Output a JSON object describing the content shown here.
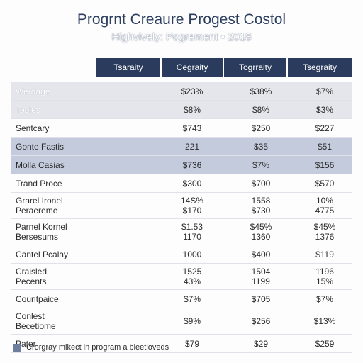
{
  "title": "Progrnt Creaure Progest Costol",
  "subtitle": "Highvively: Pogrement • 2018",
  "columns": [
    "Tsaraity",
    "Cegraity",
    "Togrraity",
    "Tsegraity"
  ],
  "rows": [
    {
      "label": [
        "Werdage"
      ],
      "values": [
        [
          "$23%"
        ],
        [
          "$38%"
        ],
        [
          "$7%"
        ]
      ]
    },
    {
      "label": [
        "Teples"
      ],
      "values": [
        [
          "$8%"
        ],
        [
          "$8%"
        ],
        [
          "$3%"
        ]
      ]
    },
    {
      "label": [
        "Sentcary"
      ],
      "values": [
        [
          "$743"
        ],
        [
          "$250"
        ],
        [
          "$227"
        ]
      ]
    },
    {
      "label": [
        "Gonte Fastis"
      ],
      "values": [
        [
          "221"
        ],
        [
          "$35"
        ],
        [
          "$51"
        ]
      ]
    },
    {
      "label": [
        "Molla Casias"
      ],
      "values": [
        [
          "$736"
        ],
        [
          "$7%"
        ],
        [
          "$156"
        ]
      ]
    },
    {
      "label": [
        "Trand Proce"
      ],
      "values": [
        [
          "$300"
        ],
        [
          "$700"
        ],
        [
          "$570"
        ]
      ]
    },
    {
      "label": [
        "Grarel Ironel",
        "Peraereme"
      ],
      "values": [
        [
          "14S%",
          "$170"
        ],
        [
          "1558",
          "$730"
        ],
        [
          "10%",
          "4775"
        ]
      ]
    },
    {
      "label": [
        "Parnel Kornel",
        "Bersesums"
      ],
      "values": [
        [
          "$1.53",
          "1170"
        ],
        [
          "$45%",
          "1360"
        ],
        [
          "$45%",
          "1376"
        ]
      ]
    },
    {
      "label": [
        "Cantel Pcalay"
      ],
      "values": [
        [
          "1000"
        ],
        [
          "$400"
        ],
        [
          "$119"
        ]
      ]
    },
    {
      "label": [
        "Craisled",
        "Pecents"
      ],
      "values": [
        [
          "1525",
          "43%"
        ],
        [
          "1504",
          "1199"
        ],
        [
          "1196",
          "15%"
        ]
      ]
    },
    {
      "label": [
        "Countpaice"
      ],
      "values": [
        [
          "$7%"
        ],
        [
          "$705"
        ],
        [
          "$7%"
        ]
      ]
    },
    {
      "label": [
        "Conlest",
        "Becetiome"
      ],
      "values": [
        [
          "$9%"
        ],
        [
          "$256"
        ],
        [
          "$13%"
        ]
      ]
    },
    {
      "label": [
        "Pater"
      ],
      "values": [
        [
          "$79"
        ],
        [
          "$29"
        ],
        [
          "$259"
        ]
      ]
    }
  ],
  "legend": {
    "text": "Crorgray mikect in program a bleetioveds",
    "color": "#6f7d9f"
  },
  "colors": {
    "header": "#2b3b5d",
    "highlight": "#c3cbdd",
    "shade": "#e4e6ec"
  }
}
